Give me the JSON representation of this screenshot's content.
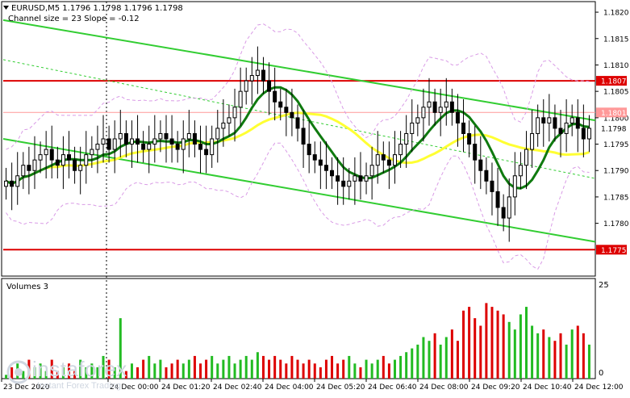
{
  "header": {
    "symbol_line": "EURUSD,M5  1.1796 1.1798 1.1796 1.1798",
    "indicator_line": "Channel size = 23 Slope = -0.12"
  },
  "volume_panel": {
    "label": "Volumes 3",
    "top_label": "25",
    "bottom_label": "0"
  },
  "watermark": {
    "name": "instaforex",
    "tagline": "Instant Forex Trading"
  },
  "colors": {
    "bull_candle": "#000000",
    "bear_candle": "#000000",
    "channel": "#32cd32",
    "level_line": "#dd0000",
    "ma_fast": "#0f7a0f",
    "ma_slow": "#ffff33",
    "bands": "#d99be6",
    "vol_up": "#22bb22",
    "vol_down": "#dd0000"
  },
  "chart_data": {
    "type": "candlestick",
    "title": "EURUSD,M5",
    "ylim": [
      1.177,
      1.1822
    ],
    "y_ticks": [
      1.182,
      1.1815,
      1.181,
      1.1805,
      1.18,
      1.1795,
      1.179,
      1.1785,
      1.178
    ],
    "x_ticks": [
      "23 Dec 2020",
      "24 Dec 00:00",
      "24 Dec 01:20",
      "24 Dec 02:40",
      "24 Dec 04:00",
      "24 Dec 05:20",
      "24 Dec 06:40",
      "24 Dec 08:00",
      "24 Dec 09:20",
      "24 Dec 10:40",
      "24 Dec 12:00"
    ],
    "last_price": {
      "label": "1.1798",
      "value": 1.1798
    },
    "levels": [
      {
        "label": "1.1807",
        "value": 1.1807,
        "color": "#dd0000"
      },
      {
        "label": "1.1775",
        "value": 1.1775,
        "color": "#dd0000"
      },
      {
        "label": "1.1801",
        "value": 1.1801,
        "color": "#ff9999"
      }
    ],
    "close": [
      1.1788,
      1.1787,
      1.1789,
      1.1791,
      1.179,
      1.1792,
      1.1793,
      1.1794,
      1.1792,
      1.1791,
      1.1793,
      1.1792,
      1.179,
      1.1791,
      1.1793,
      1.1794,
      1.1795,
      1.1796,
      1.1794,
      1.1796,
      1.1797,
      1.1795,
      1.1796,
      1.1795,
      1.1794,
      1.1795,
      1.1796,
      1.1797,
      1.1796,
      1.1795,
      1.1794,
      1.1796,
      1.1797,
      1.1795,
      1.1794,
      1.1793,
      1.1796,
      1.1798,
      1.1799,
      1.18,
      1.1802,
      1.1805,
      1.1807,
      1.1808,
      1.1809,
      1.1807,
      1.1805,
      1.1803,
      1.1802,
      1.1801,
      1.18,
      1.1798,
      1.1795,
      1.1793,
      1.1792,
      1.1791,
      1.179,
      1.1789,
      1.1788,
      1.1787,
      1.1788,
      1.1789,
      1.1788,
      1.1789,
      1.1791,
      1.1793,
      1.1792,
      1.1791,
      1.1793,
      1.1795,
      1.1797,
      1.1799,
      1.18,
      1.1802,
      1.1803,
      1.1801,
      1.1802,
      1.1803,
      1.1801,
      1.1799,
      1.1797,
      1.1795,
      1.1792,
      1.179,
      1.1788,
      1.1786,
      1.1783,
      1.1781,
      1.1785,
      1.1789,
      1.1791,
      1.1794,
      1.1797,
      1.18,
      1.1799,
      1.18,
      1.1798,
      1.1797,
      1.1799,
      1.18,
      1.1798,
      1.1796,
      1.1798
    ],
    "volumes": [
      1,
      3,
      4,
      2,
      5,
      3,
      4,
      2,
      5,
      2,
      3,
      4,
      2,
      5,
      3,
      4,
      3,
      6,
      5,
      3,
      16,
      2,
      4,
      3,
      5,
      6,
      4,
      5,
      3,
      4,
      5,
      4,
      5,
      6,
      4,
      5,
      6,
      4,
      5,
      6,
      4,
      5,
      6,
      5,
      7,
      6,
      5,
      6,
      5,
      4,
      6,
      5,
      4,
      5,
      4,
      3,
      5,
      6,
      4,
      5,
      6,
      4,
      3,
      5,
      4,
      5,
      6,
      4,
      5,
      6,
      7,
      8,
      9,
      11,
      10,
      12,
      9,
      11,
      13,
      10,
      18,
      19,
      16,
      14,
      20,
      19,
      18,
      17,
      15,
      13,
      17,
      19,
      14,
      12,
      13,
      11,
      10,
      12,
      9,
      13,
      14,
      12,
      9
    ],
    "volume_ylim": [
      0,
      25
    ]
  }
}
